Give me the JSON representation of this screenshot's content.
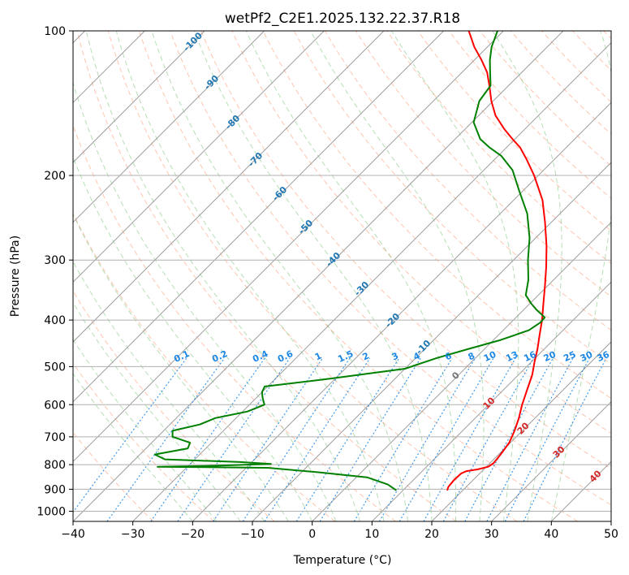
{
  "chart_data": {
    "type": "line",
    "title": "wetPf2_C2E1.2025.132.22.37.R18",
    "xlabel": "Temperature (°C)",
    "ylabel": "Pressure (hPa)",
    "xlim": [
      -40,
      50
    ],
    "ylim": [
      1050,
      100
    ],
    "y_scale": "log",
    "grid": true,
    "x_ticks": [
      -40,
      -30,
      -20,
      -10,
      0,
      10,
      20,
      30,
      40,
      50
    ],
    "y_ticks": [
      100,
      200,
      300,
      400,
      500,
      600,
      700,
      800,
      900,
      1000
    ],
    "x_tick_labels": [
      "−40",
      "−30",
      "−20",
      "−10",
      "0",
      "10",
      "20",
      "30",
      "40",
      "50"
    ],
    "y_tick_labels": [
      "100",
      "200",
      "300",
      "400",
      "500",
      "600",
      "700",
      "800",
      "900",
      "1000"
    ],
    "colors": {
      "temperature": "#ff0000",
      "dewpoint": "#008000",
      "isotherm_labels": "#1f77b4",
      "mixing_ratio": "#1e88e5",
      "dry_adiabat": "#ff7f50",
      "moist_adiabat": "#2ca02c",
      "theta_label": "#d62728",
      "grid": "#b0b0b0"
    },
    "series": [
      {
        "key": "temperature",
        "points": [
          [
            905,
            17.4
          ],
          [
            890,
            17.0
          ],
          [
            860,
            16.8
          ],
          [
            835,
            16.9
          ],
          [
            825,
            17.4
          ],
          [
            818,
            19.0
          ],
          [
            808,
            20.3
          ],
          [
            795,
            20.6
          ],
          [
            780,
            20.5
          ],
          [
            760,
            20.3
          ],
          [
            720,
            19.8
          ],
          [
            680,
            18.7
          ],
          [
            640,
            17.3
          ],
          [
            600,
            15.6
          ],
          [
            560,
            14.0
          ],
          [
            520,
            12.3
          ],
          [
            490,
            10.6
          ],
          [
            460,
            8.9
          ],
          [
            430,
            6.9
          ],
          [
            400,
            4.8
          ],
          [
            370,
            2.3
          ],
          [
            340,
            -0.4
          ],
          [
            310,
            -3.4
          ],
          [
            280,
            -6.9
          ],
          [
            250,
            -11.1
          ],
          [
            225,
            -15.2
          ],
          [
            200,
            -20.7
          ],
          [
            185,
            -24.7
          ],
          [
            175,
            -27.7
          ],
          [
            168,
            -30.4
          ],
          [
            160,
            -33.5
          ],
          [
            150,
            -37.2
          ],
          [
            140,
            -40.3
          ],
          [
            130,
            -43.2
          ],
          [
            122,
            -45.8
          ],
          [
            115,
            -48.8
          ],
          [
            108,
            -52.2
          ],
          [
            100,
            -55.8
          ]
        ]
      },
      {
        "key": "dewpoint",
        "points": [
          [
            905,
            8.9
          ],
          [
            880,
            6.5
          ],
          [
            850,
            1.8
          ],
          [
            830,
            -7.0
          ],
          [
            812,
            -16.4
          ],
          [
            808,
            -35.0
          ],
          [
            805,
            -27.0
          ],
          [
            797,
            -16.5
          ],
          [
            790,
            -22.0
          ],
          [
            780,
            -35.0
          ],
          [
            762,
            -37.5
          ],
          [
            740,
            -33.0
          ],
          [
            720,
            -33.6
          ],
          [
            700,
            -37.5
          ],
          [
            680,
            -38.5
          ],
          [
            660,
            -35.0
          ],
          [
            640,
            -33.5
          ],
          [
            620,
            -29.2
          ],
          [
            600,
            -27.5
          ],
          [
            580,
            -29.0
          ],
          [
            565,
            -30.0
          ],
          [
            550,
            -30.5
          ],
          [
            530,
            -21.0
          ],
          [
            505,
            -10.0
          ],
          [
            480,
            -6.5
          ],
          [
            460,
            -2.8
          ],
          [
            440,
            1.2
          ],
          [
            420,
            4.3
          ],
          [
            405,
            4.9
          ],
          [
            395,
            4.8
          ],
          [
            380,
            2.0
          ],
          [
            370,
            0.3
          ],
          [
            355,
            -2.1
          ],
          [
            330,
            -4.2
          ],
          [
            300,
            -7.6
          ],
          [
            270,
            -11.0
          ],
          [
            240,
            -15.5
          ],
          [
            215,
            -20.7
          ],
          [
            195,
            -25.2
          ],
          [
            182,
            -29.5
          ],
          [
            175,
            -32.8
          ],
          [
            168,
            -35.8
          ],
          [
            155,
            -39.7
          ],
          [
            140,
            -42.3
          ],
          [
            130,
            -43.0
          ],
          [
            122,
            -45.3
          ],
          [
            115,
            -47.4
          ],
          [
            108,
            -49.3
          ],
          [
            100,
            -51.0
          ]
        ]
      }
    ],
    "isotherm_labels": [
      "-100",
      "-90",
      "-80",
      "-70",
      "-60",
      "-50",
      "-40",
      "-30",
      "-20",
      "-10",
      "0"
    ],
    "isotherm_values": [
      -100,
      -90,
      -80,
      -70,
      -60,
      -50,
      -40,
      -30,
      -20,
      -10,
      0
    ],
    "mixing_ratio_labels": [
      "0.1",
      "0.2",
      "0.4",
      "0.6",
      "1",
      "1.5",
      "2",
      "3",
      "4",
      "6",
      "8",
      "10",
      "13",
      "16",
      "20",
      "25",
      "30",
      "36"
    ],
    "mixing_ratio_values": [
      0.1,
      0.2,
      0.4,
      0.6,
      1,
      1.5,
      2,
      3,
      4,
      6,
      8,
      10,
      13,
      16,
      20,
      25,
      30,
      36
    ],
    "theta_labels": [
      "10",
      "20",
      "30",
      "40"
    ],
    "theta_values": [
      10,
      20,
      30,
      40
    ]
  }
}
